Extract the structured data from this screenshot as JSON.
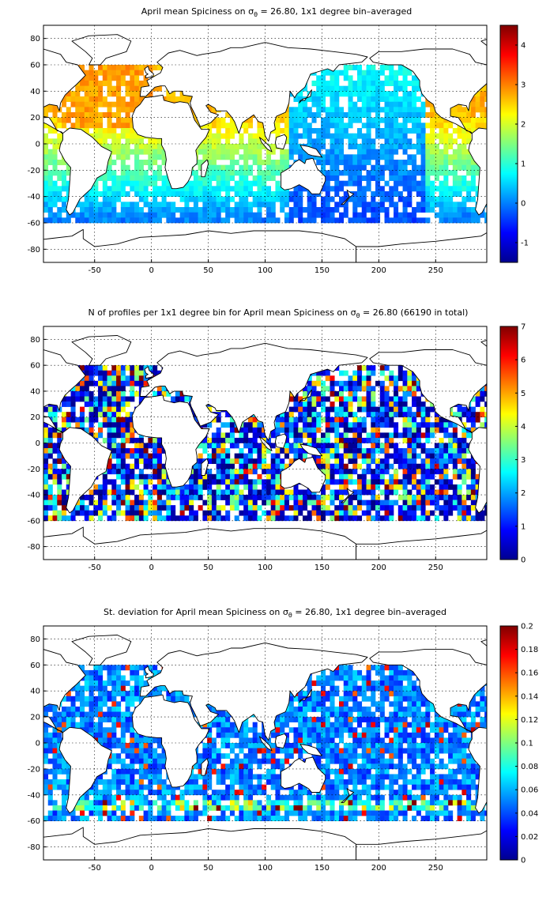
{
  "chart_data": [
    {
      "type": "heatmap",
      "title": "April mean Spiciness on σ",
      "title_sub": "θ",
      "title_rest": " = 26.80, 1x1 degree bin–averaged",
      "x_ticks": [
        -50,
        0,
        50,
        100,
        150,
        200,
        250
      ],
      "y_ticks": [
        80,
        60,
        40,
        20,
        0,
        -20,
        -40,
        -60,
        -80
      ],
      "xlim": [
        -95,
        295
      ],
      "ylim": [
        -90,
        90
      ],
      "colorbar": {
        "range": [
          -1.5,
          4.5
        ],
        "ticks": [
          4,
          3,
          2,
          1,
          0,
          -1
        ]
      },
      "colormap": "jet",
      "grid": true
    },
    {
      "type": "heatmap",
      "title": "N of profiles per 1x1 degree bin for April mean Spiciness on σ",
      "title_sub": "θ",
      "title_rest": " = 26.80 (66190 in total)",
      "x_ticks": [
        -50,
        0,
        50,
        100,
        150,
        200,
        250
      ],
      "y_ticks": [
        80,
        60,
        40,
        20,
        0,
        -20,
        -40,
        -60,
        -80
      ],
      "xlim": [
        -95,
        295
      ],
      "ylim": [
        -90,
        90
      ],
      "colorbar": {
        "range": [
          0,
          7
        ],
        "ticks": [
          7,
          6,
          5,
          4,
          3,
          2,
          1,
          0
        ]
      },
      "colormap": "jet",
      "grid": true
    },
    {
      "type": "heatmap",
      "title": "St. deviation for April mean Spiciness on σ",
      "title_sub": "θ",
      "title_rest": " = 26.80, 1x1 degree bin–averaged",
      "x_ticks": [
        -50,
        0,
        50,
        100,
        150,
        200,
        250
      ],
      "y_ticks": [
        80,
        60,
        40,
        20,
        0,
        -20,
        -40,
        -60,
        -80
      ],
      "xlim": [
        -95,
        295
      ],
      "ylim": [
        -90,
        90
      ],
      "colorbar": {
        "range": [
          0,
          0.2
        ],
        "ticks": [
          0.2,
          0.18,
          0.16,
          0.14,
          0.12,
          0.1,
          0.08,
          0.06,
          0.04,
          0.02,
          0
        ]
      },
      "colormap": "jet",
      "grid": true
    }
  ]
}
